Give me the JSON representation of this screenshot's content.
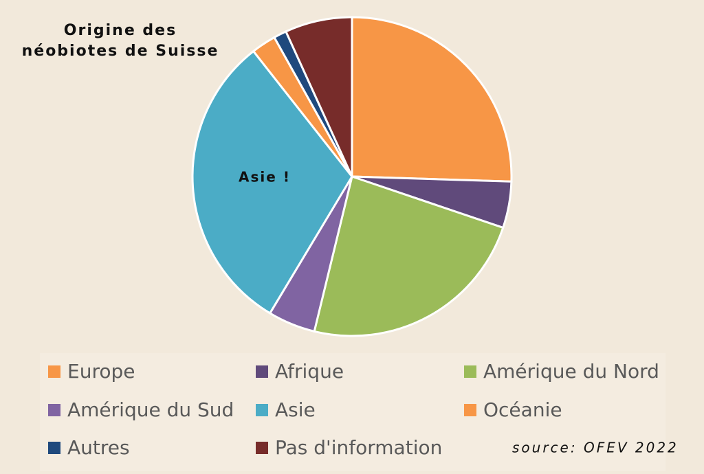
{
  "chart_data": {
    "type": "pie",
    "title": "Origine des néobiotes de Suisse",
    "categories": [
      "Europe",
      "Afrique",
      "Amérique du Nord",
      "Amérique du Sud",
      "Asie",
      "Océanie",
      "Autres",
      "Pas d'information"
    ],
    "values": [
      25.5,
      4.7,
      23.6,
      4.8,
      30.8,
      2.5,
      1.3,
      6.8
    ],
    "colors": [
      "#f79646",
      "#604a7b",
      "#9bbb59",
      "#8064a2",
      "#4bacc6",
      "#f79646",
      "#1f497d",
      "#772c2a"
    ],
    "annotation": "Asie !",
    "source": "source: OFEV 2022"
  }
}
